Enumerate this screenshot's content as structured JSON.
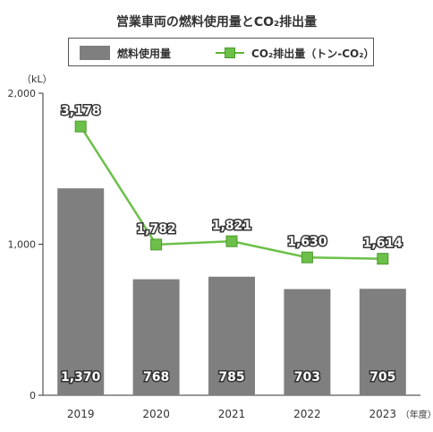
{
  "chart_data": {
    "type": "bar",
    "title": "営業車両の燃料使用量とCO₂排出量",
    "y_unit": "（kL）",
    "x_unit": "（年度）",
    "ylim": [
      0,
      2000
    ],
    "yticks": [
      "0",
      "1,000",
      "2,000"
    ],
    "grid": false,
    "legend_position": "top",
    "categories": [
      "2019",
      "2020",
      "2021",
      "2022",
      "2023"
    ],
    "series": [
      {
        "name": "燃料使用量",
        "type": "bar",
        "color": "#7f7f7f",
        "values": [
          1370,
          768,
          785,
          703,
          705
        ],
        "labels": [
          "1,370",
          "768",
          "785",
          "703",
          "705"
        ]
      },
      {
        "name": "CO₂排出量（トン-CO₂）",
        "type": "line",
        "color": "#6cc04a",
        "values": [
          3178,
          1782,
          1821,
          1630,
          1614
        ],
        "labels": [
          "3,178",
          "1,782",
          "1,821",
          "1,630",
          "1,614"
        ]
      }
    ]
  }
}
